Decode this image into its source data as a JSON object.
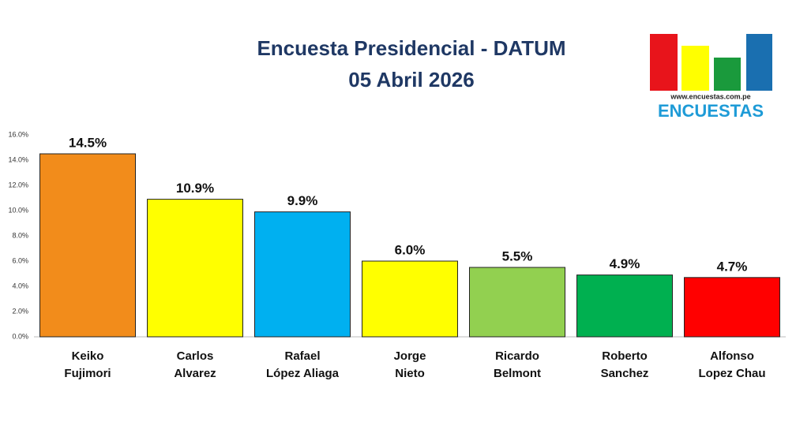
{
  "chart_data": {
    "type": "bar",
    "title": "Encuesta Presidencial - DATUM",
    "subtitle": "05 Abril 2026",
    "categories": [
      [
        "Keiko",
        "Fujimori"
      ],
      [
        "Carlos",
        "Alvarez"
      ],
      [
        "Rafael",
        "López Aliaga"
      ],
      [
        "Jorge",
        "Nieto"
      ],
      [
        "Ricardo",
        "Belmont"
      ],
      [
        "Roberto",
        "Sanchez"
      ],
      [
        "Alfonso",
        "Lopez Chau"
      ]
    ],
    "values": [
      14.5,
      10.9,
      9.9,
      6.0,
      5.5,
      4.9,
      4.7
    ],
    "value_labels": [
      "14.5%",
      "10.9%",
      "9.9%",
      "6.0%",
      "5.5%",
      "4.9%",
      "4.7%"
    ],
    "colors": [
      "#f28c1b",
      "#ffff00",
      "#00b0f0",
      "#ffff00",
      "#92d050",
      "#00b050",
      "#ff0000"
    ],
    "ylim": [
      0,
      16
    ],
    "yticks": [
      {
        "value": 0,
        "label": "0.0%"
      },
      {
        "value": 2,
        "label": "2.0%"
      },
      {
        "value": 4,
        "label": "4.0%"
      },
      {
        "value": 6,
        "label": "6.0%"
      },
      {
        "value": 8,
        "label": "8.0%"
      },
      {
        "value": 10,
        "label": "10.0%"
      },
      {
        "value": 12,
        "label": "12.0%"
      },
      {
        "value": 14,
        "label": "14.0%"
      },
      {
        "value": 16,
        "label": "16.0%"
      }
    ],
    "grid": false
  },
  "logo": {
    "url": "www.encuestas.com.pe",
    "name": "ENCUESTAS"
  }
}
